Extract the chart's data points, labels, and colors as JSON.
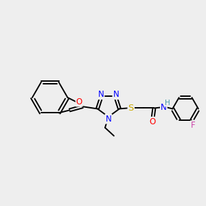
{
  "bg_color": "#eeeeee",
  "bond_color": "#000000",
  "atom_colors": {
    "N": "#0000ff",
    "O": "#ff0000",
    "S": "#ccaa00",
    "F": "#cc44aa",
    "H": "#4499aa",
    "C": "#000000"
  },
  "figsize": [
    3.0,
    3.0
  ],
  "dpi": 100
}
